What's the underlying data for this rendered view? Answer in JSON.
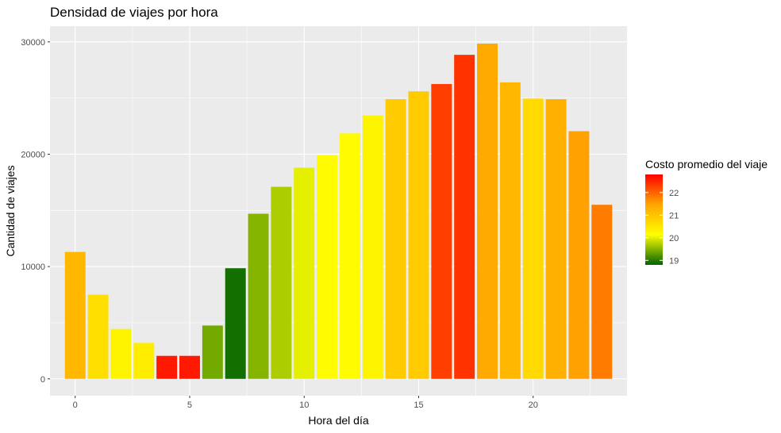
{
  "chart_data": {
    "type": "bar",
    "title": "Densidad de viajes por hora",
    "xlabel": "Hora del día",
    "ylabel": "Cantidad de viajes",
    "x": [
      0,
      1,
      2,
      3,
      4,
      5,
      6,
      7,
      8,
      9,
      10,
      11,
      12,
      13,
      14,
      15,
      16,
      17,
      18,
      19,
      20,
      21,
      22,
      23
    ],
    "values": [
      11300,
      7500,
      4450,
      3200,
      2050,
      2050,
      4750,
      9850,
      14700,
      17100,
      18800,
      19900,
      21850,
      23450,
      24900,
      25600,
      26250,
      28850,
      29850,
      26400,
      24950,
      24900,
      22050,
      15500
    ],
    "fill_values": [
      21.2,
      20.6,
      20.3,
      20.4,
      22.6,
      22.6,
      19.4,
      18.9,
      19.5,
      19.7,
      20.0,
      20.2,
      20.2,
      20.3,
      20.9,
      20.9,
      22.3,
      22.4,
      21.4,
      21.2,
      20.7,
      21.3,
      21.5,
      21.8
    ],
    "x_ticks": [
      "0",
      "5",
      "10",
      "15",
      "20"
    ],
    "x_tick_values": [
      0,
      5,
      10,
      15,
      20
    ],
    "y_ticks": [
      "0",
      "10000",
      "20000",
      "30000"
    ],
    "y_tick_values": [
      0,
      10000,
      20000,
      30000
    ],
    "xlim": [
      -1.1,
      24.1
    ],
    "ylim": [
      -1500,
      31400
    ],
    "grid": true,
    "legend": {
      "title": "Costo promedio del viaje",
      "position": "right",
      "breaks": [
        "22",
        "21",
        "20",
        "19"
      ],
      "break_values": [
        22,
        21,
        20,
        19
      ],
      "range": [
        18.8,
        22.8
      ],
      "colors": [
        "#006400",
        "#ffff00",
        "#ffa500",
        "#ff0000"
      ]
    },
    "panel_color": "#ebebeb",
    "grid_color": "#ffffff"
  }
}
